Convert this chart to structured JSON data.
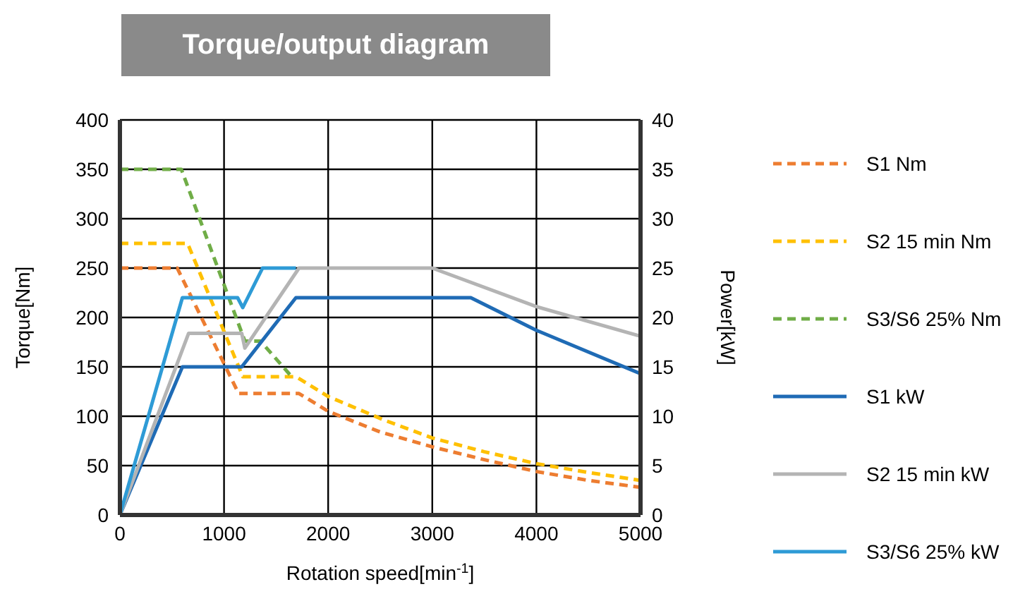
{
  "chart_data": {
    "type": "line",
    "title": "Torque/output diagram",
    "xlabel": "Rotation speed[min$^{-1}$]",
    "ylabel": "Torque[Nm]",
    "y2label": "Power[kW]",
    "xlim": [
      0,
      5000
    ],
    "xticks": [
      0,
      1000,
      2000,
      3000,
      4000,
      5000
    ],
    "ylim": [
      0,
      400
    ],
    "yticks": [
      0,
      50,
      100,
      150,
      200,
      250,
      300,
      350,
      400
    ],
    "y2lim": [
      0,
      40
    ],
    "y2ticks": [
      0,
      5,
      10,
      15,
      20,
      25,
      30,
      35,
      40
    ],
    "grid": true,
    "legend": "right",
    "marker": "none",
    "series": [
      {
        "name": "S1 Nm",
        "color": "#ed7d31",
        "line_style": "dashed",
        "x": [
          0,
          550,
          1140,
          1720,
          2000,
          2500,
          3000,
          3500,
          4000,
          4500,
          5000
        ],
        "values": [
          250,
          250,
          123,
          123,
          105,
          84,
          69,
          56,
          44,
          35,
          28
        ]
      },
      {
        "name": "S2 15 min Nm",
        "color": "#ffc000",
        "line_style": "dashed",
        "x": [
          0,
          650,
          1180,
          1690,
          2000,
          2540,
          3000,
          3500,
          4000,
          4500,
          5000
        ],
        "values": [
          275,
          275,
          140,
          140,
          120,
          96,
          78,
          64,
          52,
          43,
          35
        ]
      },
      {
        "name": "S3/S6 25% Nm",
        "color": "#70ad47",
        "line_style": "dashed",
        "x": [
          0,
          590,
          1200,
          1350,
          1650
        ],
        "values": [
          350,
          350,
          176,
          176,
          140
        ]
      },
      {
        "name": "S1 kW",
        "color": "#1f6bb5",
        "line_style": "solid",
        "axis": "y2",
        "x": [
          0,
          600,
          1170,
          1690,
          3370,
          4000,
          5000
        ],
        "values": [
          0,
          15,
          15,
          22,
          22,
          18.7,
          14.3
        ]
      },
      {
        "name": "S2 15 min kW",
        "color": "#b4b4b4",
        "line_style": "solid",
        "axis": "y2",
        "x": [
          0,
          660,
          1170,
          1200,
          1720,
          3000,
          4000,
          5000
        ],
        "values": [
          0,
          18.4,
          18.4,
          16.9,
          25,
          25,
          21.1,
          18.1
        ]
      },
      {
        "name": "S3/S6 25% kW",
        "color": "#2e9bd6",
        "line_style": "solid",
        "axis": "y2",
        "x": [
          0,
          600,
          1130,
          1180,
          1370,
          1690
        ],
        "values": [
          0,
          22,
          22,
          21,
          25,
          25
        ]
      }
    ]
  }
}
